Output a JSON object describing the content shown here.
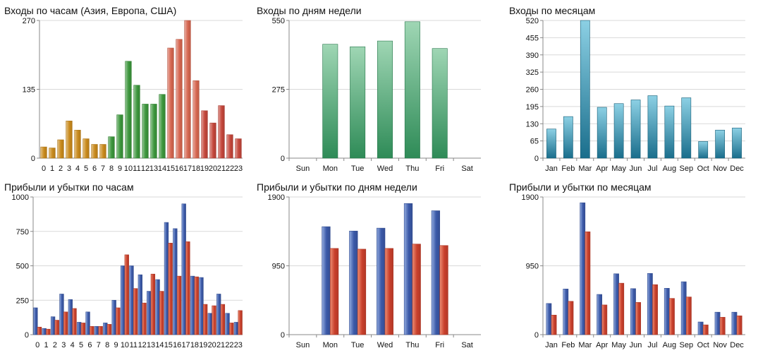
{
  "chart_data": [
    {
      "type": "bar",
      "title": "Входы по часам (Азия, Европа, США)",
      "categories": [
        "0",
        "1",
        "2",
        "3",
        "4",
        "5",
        "6",
        "7",
        "8",
        "9",
        "10",
        "11",
        "12",
        "13",
        "14",
        "15",
        "16",
        "17",
        "18",
        "19",
        "20",
        "21",
        "22",
        "23"
      ],
      "yticks": [
        "0",
        "135",
        "270"
      ],
      "ylim": [
        0,
        270
      ],
      "series": [
        {
          "values": [
            22,
            20,
            36,
            73,
            55,
            38,
            27,
            27,
            42,
            85,
            190,
            143,
            106,
            106,
            125,
            216,
            233,
            270,
            152,
            93,
            69,
            103,
            46,
            38
          ]
        }
      ],
      "bar_colors": [
        "#c98a1c",
        "#c98a1c",
        "#c98a1c",
        "#c98a1c",
        "#c98a1c",
        "#c98a1c",
        "#c98a1c",
        "#c98a1c",
        "#3c963c",
        "#3c963c",
        "#3c963c",
        "#3c963c",
        "#3c963c",
        "#3c963c",
        "#3c963c",
        "#d66650",
        "#d66650",
        "#d66650",
        "#d66650",
        "#c4473b",
        "#c4473b",
        "#c4473b",
        "#c4473b",
        "#c4473b"
      ],
      "gradient": "horizontal",
      "grid": true
    },
    {
      "type": "bar",
      "title": "Входы по дням недели",
      "categories": [
        "Sun",
        "Mon",
        "Tue",
        "Wed",
        "Thu",
        "Fri",
        "Sat"
      ],
      "yticks": [
        "0",
        "275",
        "550"
      ],
      "ylim": [
        0,
        550
      ],
      "series": [
        {
          "values": [
            0,
            455,
            445,
            468,
            545,
            438,
            0
          ]
        }
      ],
      "bar_color": "#2e8b57",
      "bar_color_light": "#9fd6b4",
      "gradient": "vertical",
      "grid": true
    },
    {
      "type": "bar",
      "title": "Входы по месяцам",
      "categories": [
        "Jan",
        "Feb",
        "Mar",
        "Apr",
        "May",
        "Jun",
        "Jul",
        "Aug",
        "Sep",
        "Oct",
        "Nov",
        "Dec"
      ],
      "yticks": [
        "0",
        "65",
        "130",
        "195",
        "260",
        "325",
        "390",
        "455",
        "520"
      ],
      "ylim": [
        0,
        520
      ],
      "series": [
        {
          "values": [
            110,
            157,
            520,
            192,
            206,
            220,
            236,
            197,
            228,
            63,
            106,
            114
          ]
        }
      ],
      "bar_color": "#1a6e8c",
      "bar_color_light": "#8cd0e4",
      "gradient": "vertical",
      "grid": true
    },
    {
      "type": "bar",
      "title": "Прибыли и убытки по часам",
      "categories": [
        "0",
        "1",
        "2",
        "3",
        "4",
        "5",
        "6",
        "7",
        "8",
        "9",
        "10",
        "11",
        "12",
        "13",
        "14",
        "15",
        "16",
        "17",
        "18",
        "19",
        "20",
        "21",
        "22",
        "23"
      ],
      "yticks": [
        "0",
        "250",
        "500",
        "750",
        "1000"
      ],
      "ylim": [
        0,
        1000
      ],
      "series": [
        {
          "values": [
            195,
            45,
            130,
            295,
            255,
            90,
            165,
            60,
            85,
            250,
            500,
            500,
            435,
            315,
            400,
            815,
            770,
            950,
            425,
            415,
            155,
            295,
            155,
            90
          ]
        },
        {
          "values": [
            55,
            40,
            105,
            165,
            190,
            85,
            60,
            60,
            75,
            195,
            580,
            335,
            230,
            440,
            315,
            665,
            425,
            675,
            420,
            220,
            210,
            220,
            85,
            175
          ]
        }
      ],
      "series_colors": [
        "#3b59a8",
        "#c9402c"
      ],
      "series_colors_light": [
        "#93acdf",
        "#ec8e74"
      ],
      "gradient": "horizontal",
      "grid": true
    },
    {
      "type": "bar",
      "title": "Прибыли и убытки по дням недели",
      "categories": [
        "Sun",
        "Mon",
        "Tue",
        "Wed",
        "Thu",
        "Fri",
        "Sat"
      ],
      "yticks": [
        "0",
        "950",
        "1900"
      ],
      "ylim": [
        0,
        1900
      ],
      "series": [
        {
          "values": [
            0,
            1490,
            1430,
            1470,
            1810,
            1710,
            0
          ]
        },
        {
          "values": [
            0,
            1190,
            1180,
            1190,
            1250,
            1230,
            0
          ]
        }
      ],
      "series_colors": [
        "#3b59a8",
        "#c9402c"
      ],
      "series_colors_light": [
        "#93acdf",
        "#ec8e74"
      ],
      "gradient": "horizontal",
      "grid": true
    },
    {
      "type": "bar",
      "title": "Прибыли и убытки по месяцам",
      "categories": [
        "Jan",
        "Feb",
        "Mar",
        "Apr",
        "May",
        "Jun",
        "Jul",
        "Aug",
        "Sep",
        "Oct",
        "Nov",
        "Dec"
      ],
      "yticks": [
        "0",
        "950",
        "1900"
      ],
      "ylim": [
        0,
        1900
      ],
      "series": [
        {
          "values": [
            430,
            630,
            1820,
            555,
            840,
            635,
            845,
            640,
            730,
            175,
            310,
            310
          ]
        },
        {
          "values": [
            270,
            460,
            1420,
            410,
            710,
            445,
            690,
            500,
            520,
            135,
            240,
            260
          ]
        }
      ],
      "series_colors": [
        "#3b59a8",
        "#c9402c"
      ],
      "series_colors_light": [
        "#93acdf",
        "#ec8e74"
      ],
      "gradient": "horizontal",
      "grid": true
    }
  ]
}
